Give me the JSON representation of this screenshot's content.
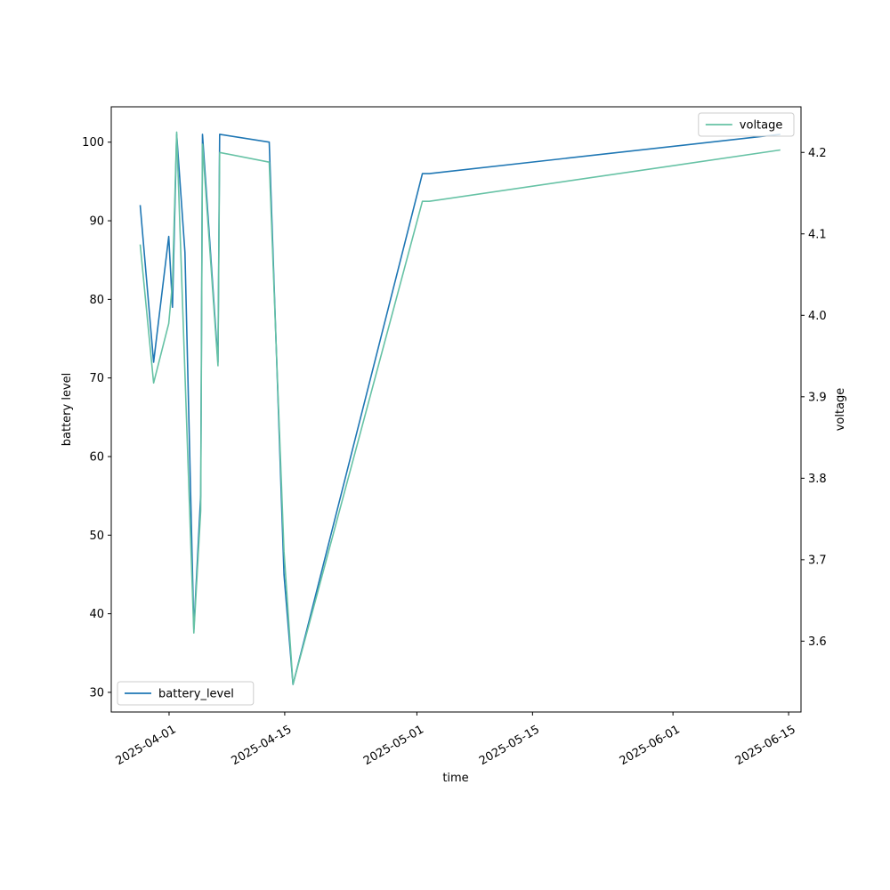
{
  "chart_data": {
    "type": "line",
    "xlabel": "time",
    "ylabel_left": "battery level",
    "ylabel_right": "voltage",
    "x_ticks": [
      "2025-04-01",
      "2025-04-15",
      "2025-05-01",
      "2025-05-15",
      "2025-06-01",
      "2025-06-15"
    ],
    "x_range": [
      "2025-03-25T00:00",
      "2025-06-16T12:00"
    ],
    "y_left_ticks": [
      30,
      40,
      50,
      60,
      70,
      80,
      90,
      100
    ],
    "y_left_range": [
      27.5,
      104.5
    ],
    "y_right_ticks": [
      3.6,
      3.7,
      3.8,
      3.9,
      4.0,
      4.1,
      4.2
    ],
    "y_right_range": [
      3.513,
      4.256
    ],
    "series": [
      {
        "name": "battery_level",
        "axis": "left",
        "color": "#1f77b4",
        "legend_position": "lower-left",
        "points": [
          [
            "2025-03-28T12:00",
            92
          ],
          [
            "2025-03-30T03:00",
            72
          ],
          [
            "2025-03-31T23:00",
            88
          ],
          [
            "2025-04-01T10:00",
            79
          ],
          [
            "2025-04-01T22:00",
            101
          ],
          [
            "2025-04-02T22:00",
            86
          ],
          [
            "2025-04-04T00:00",
            38
          ],
          [
            "2025-04-04T20:00",
            55
          ],
          [
            "2025-04-05T01:00",
            101
          ],
          [
            "2025-04-06T22:00",
            72
          ],
          [
            "2025-04-07T03:00",
            101
          ],
          [
            "2025-04-13T03:00",
            100
          ],
          [
            "2025-04-14T22:00",
            45
          ],
          [
            "2025-04-16T00:00",
            31
          ],
          [
            "2025-05-01T16:00",
            96
          ],
          [
            "2025-05-02T12:00",
            96
          ],
          [
            "2025-06-14T00:00",
            101
          ]
        ]
      },
      {
        "name": "voltage",
        "axis": "right",
        "color": "#66c2a5",
        "legend_position": "upper-right",
        "points": [
          [
            "2025-03-28T12:00",
            4.087
          ],
          [
            "2025-03-30T03:00",
            3.917
          ],
          [
            "2025-03-31T23:00",
            3.99
          ],
          [
            "2025-04-01T10:00",
            4.04
          ],
          [
            "2025-04-01T22:00",
            4.225
          ],
          [
            "2025-04-04T00:00",
            3.61
          ],
          [
            "2025-04-04T20:00",
            3.76
          ],
          [
            "2025-04-05T01:00",
            4.21
          ],
          [
            "2025-04-06T22:00",
            3.938
          ],
          [
            "2025-04-07T03:00",
            4.2
          ],
          [
            "2025-04-13T03:00",
            4.188
          ],
          [
            "2025-04-14T22:00",
            3.71
          ],
          [
            "2025-04-16T00:00",
            3.547
          ],
          [
            "2025-05-01T16:00",
            4.14
          ],
          [
            "2025-05-02T12:00",
            4.14
          ],
          [
            "2025-06-14T00:00",
            4.203
          ]
        ]
      }
    ]
  }
}
